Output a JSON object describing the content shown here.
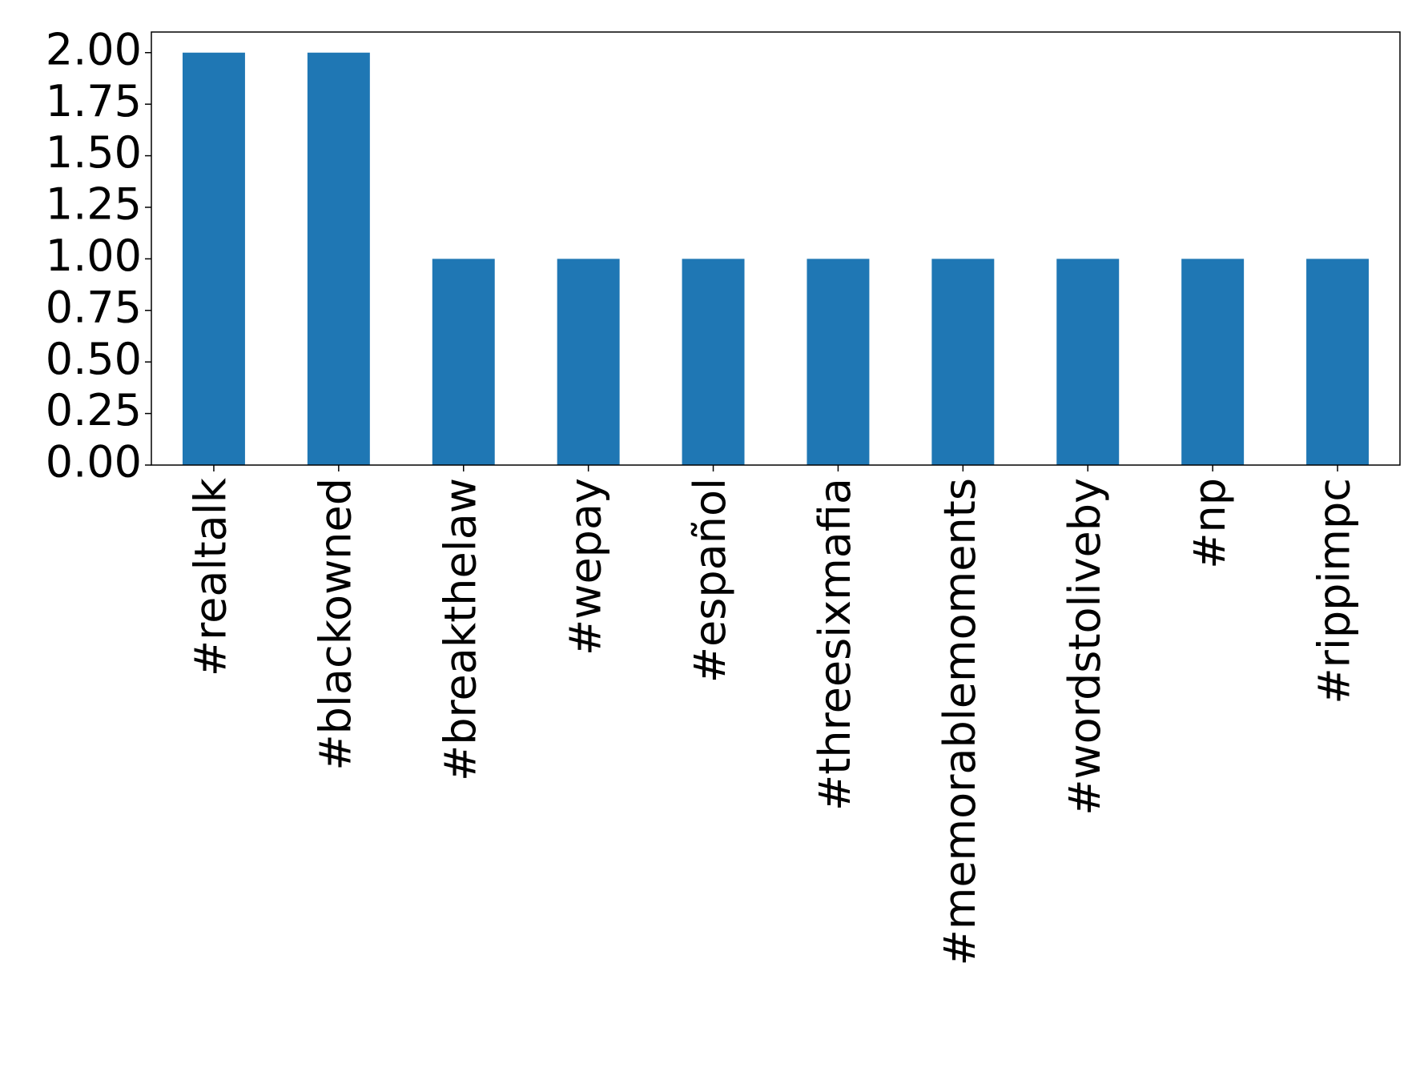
{
  "chart_data": {
    "type": "bar",
    "categories": [
      "#realtalk",
      "#blackowned",
      "#breakthelaw",
      "#wepay",
      "#español",
      "#threesixmafia",
      "#memorablemoments",
      "#wordstoliveby",
      "#np",
      "#rippimpc"
    ],
    "values": [
      2,
      2,
      1,
      1,
      1,
      1,
      1,
      1,
      1,
      1
    ],
    "color": "#1f77b4",
    "ylim": [
      0,
      2.1
    ],
    "yticks": [
      {
        "value": 0,
        "label": "0.00"
      },
      {
        "value": 0.25,
        "label": "0.25"
      },
      {
        "value": 0.5,
        "label": "0.50"
      },
      {
        "value": 0.75,
        "label": "0.75"
      },
      {
        "value": 1,
        "label": "1.00"
      },
      {
        "value": 1.25,
        "label": "1.25"
      },
      {
        "value": 1.5,
        "label": "1.50"
      },
      {
        "value": 1.75,
        "label": "1.75"
      },
      {
        "value": 2,
        "label": "2.00"
      }
    ],
    "grid": false
  }
}
